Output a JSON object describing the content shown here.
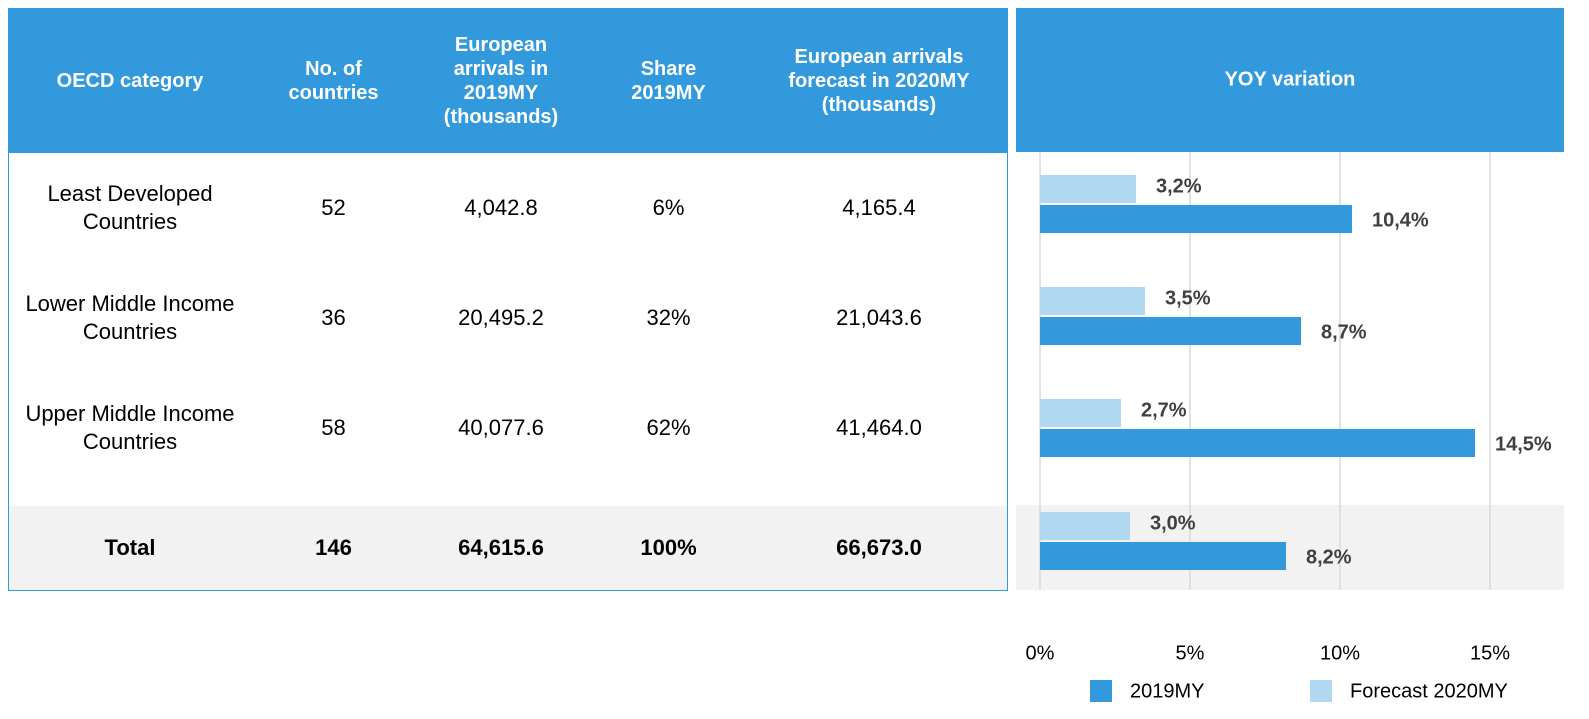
{
  "table": {
    "headers": [
      "OECD category",
      "No. of countries",
      "European arrivals in 2019MY (thousands)",
      "Share 2019MY",
      "European arrivals forecast in 2020MY (thousands)"
    ],
    "rows": [
      [
        "Least Developed Countries",
        "52",
        "4,042.8",
        "6%",
        "4,165.4"
      ],
      [
        "Lower Middle Income Countries",
        "36",
        "20,495.2",
        "32%",
        "21,043.6"
      ],
      [
        "Upper Middle Income Countries",
        "58",
        "40,077.6",
        "62%",
        "41,464.0"
      ],
      [
        "Total",
        "146",
        "64,615.6",
        "100%",
        "66,673.0"
      ]
    ]
  },
  "chart_data": {
    "type": "hbar",
    "title": "YOY variation",
    "series": [
      {
        "name": "2019MY",
        "color": "#3399dd",
        "values": [
          10.4,
          8.7,
          14.5,
          8.2
        ],
        "value_labels": [
          "10,4%",
          "8,7%",
          "14,5%",
          "8,2%"
        ]
      },
      {
        "name": "Forecast 2020MY",
        "color": "#b0d8f0",
        "values": [
          3.2,
          3.5,
          2.7,
          3.0
        ],
        "value_labels": [
          "3,2%",
          "3,5%",
          "2,7%",
          "3,0%"
        ]
      }
    ],
    "xlim": [
      0,
      17.5
    ],
    "xticks": [
      {
        "value": 0,
        "label": "0%"
      },
      {
        "value": 5,
        "label": "5%"
      },
      {
        "value": 10,
        "label": "10%"
      },
      {
        "value": 15,
        "label": "15%"
      }
    ],
    "grid": true
  }
}
